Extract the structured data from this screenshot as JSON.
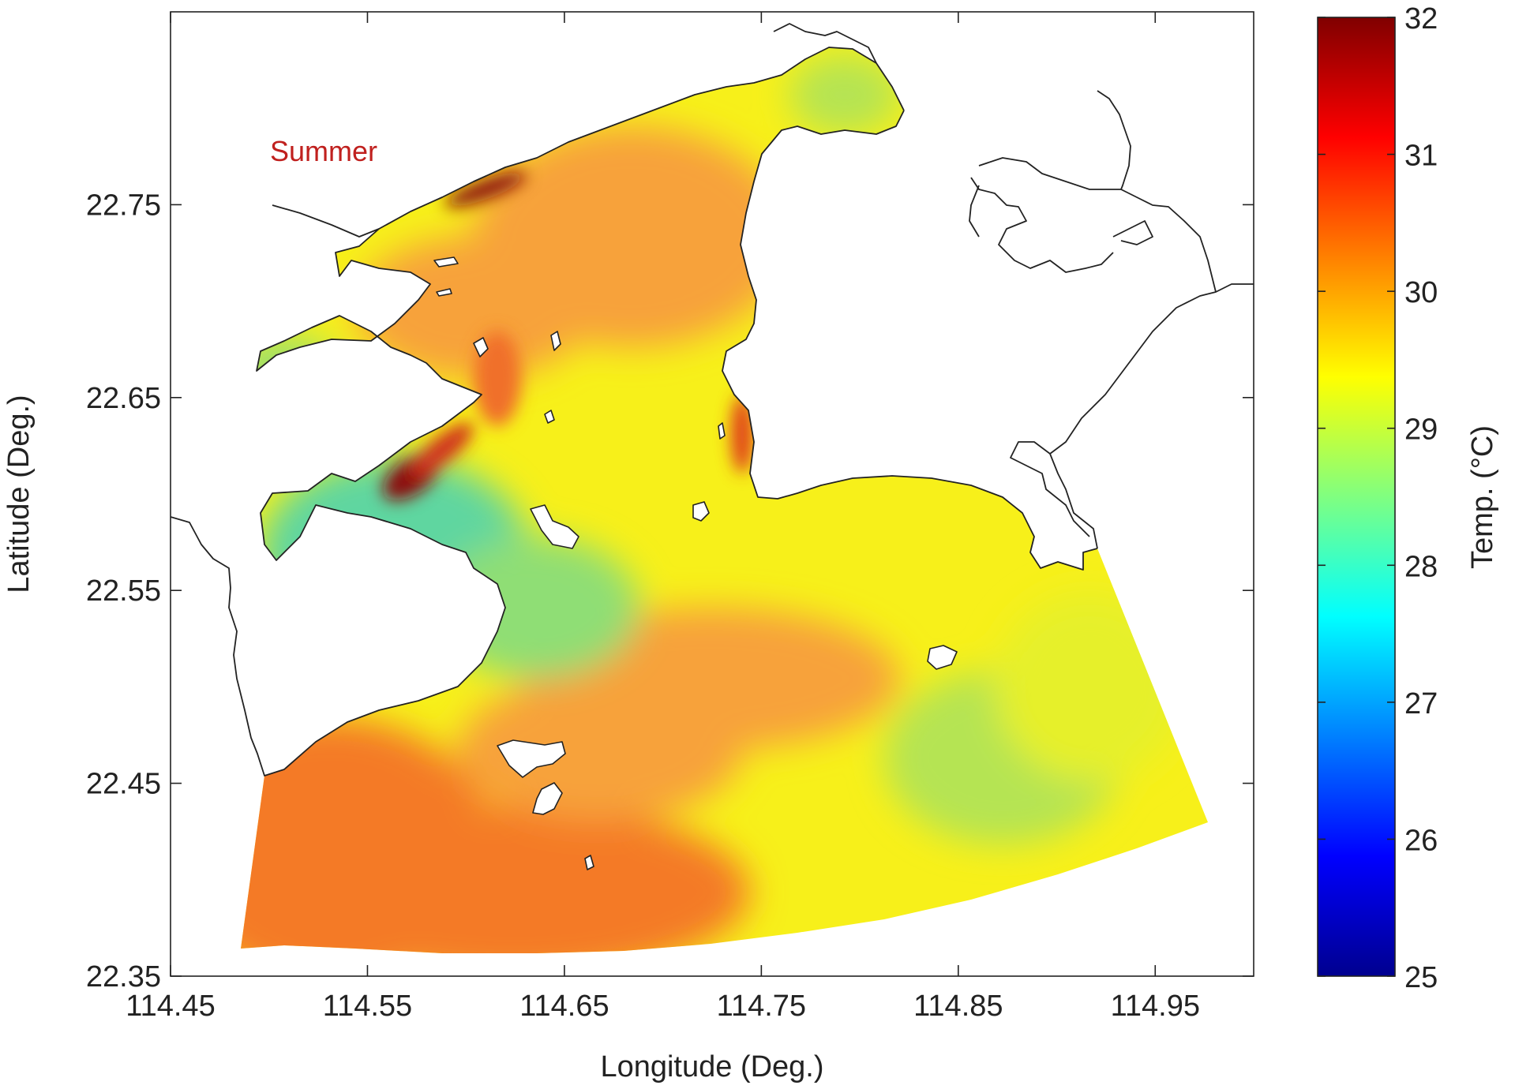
{
  "map": {
    "season_label": "Summer",
    "season_label_color": "#c0201e",
    "x_axis": {
      "label": "Longitude (Deg.)",
      "range": [
        114.45,
        115.0
      ],
      "ticks": [
        114.45,
        114.55,
        114.65,
        114.75,
        114.85,
        114.95
      ],
      "tick_labels": [
        "114.45",
        "114.55",
        "114.65",
        "114.75",
        "114.85",
        "114.95"
      ]
    },
    "y_axis": {
      "label": "Latitude (Deg.)",
      "range": [
        22.35,
        22.85
      ],
      "ticks": [
        22.35,
        22.45,
        22.55,
        22.65,
        22.75
      ],
      "tick_labels": [
        "22.35",
        "22.45",
        "22.55",
        "22.65",
        "22.75"
      ]
    },
    "colorbar": {
      "label": "Temp. (°C)",
      "range": [
        25,
        32
      ],
      "ticks": [
        25,
        26,
        27,
        28,
        29,
        30,
        31,
        32
      ],
      "tick_labels": [
        "25",
        "26",
        "27",
        "28",
        "29",
        "30",
        "31",
        "32"
      ],
      "colormap": "jet",
      "stops": [
        "#00008f",
        "#0000ff",
        "#0080ff",
        "#00ffff",
        "#80ff80",
        "#ffff00",
        "#ff8000",
        "#ff0000",
        "#800000"
      ]
    },
    "field_colors": {
      "warm_band": "#f47a28",
      "mid_orange": "#f7a23a",
      "yellow": "#f7f01a",
      "yellow_green": "#d8ec3c",
      "green": "#9fe06a",
      "teal": "#5fd6a0",
      "hot_spot": "#8b1010",
      "land": "#ffffff",
      "coast": "#222222"
    }
  }
}
